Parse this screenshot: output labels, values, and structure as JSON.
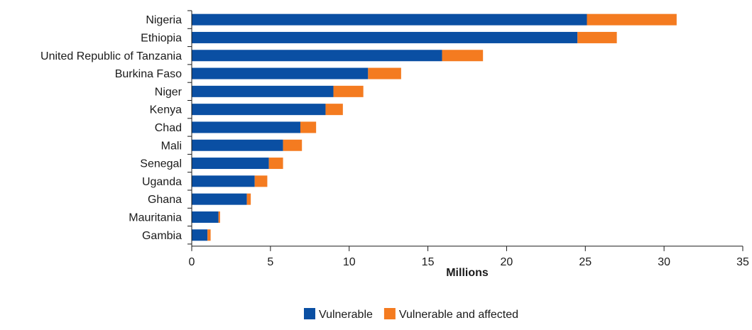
{
  "chart_data": {
    "type": "bar",
    "orientation": "horizontal",
    "stacked": true,
    "categories": [
      "Nigeria",
      "Ethiopia",
      "United Republic of Tanzania",
      "Burkina Faso",
      "Niger",
      "Kenya",
      "Chad",
      "Mali",
      "Senegal",
      "Uganda",
      "Ghana",
      "Mauritania",
      "Gambia"
    ],
    "series": [
      {
        "name": "Vulnerable",
        "color": "#0a4fa3",
        "values": [
          25.1,
          24.5,
          15.9,
          11.2,
          9.0,
          8.5,
          6.9,
          5.8,
          4.9,
          4.0,
          3.5,
          1.7,
          1.0
        ]
      },
      {
        "name": "Vulnerable and affected",
        "color": "#f47b20",
        "values": [
          5.7,
          2.5,
          2.6,
          2.1,
          1.9,
          1.1,
          1.0,
          1.2,
          0.9,
          0.8,
          0.25,
          0.1,
          0.2
        ]
      }
    ],
    "xlabel": "Millions",
    "ylabel": "",
    "xlim": [
      0,
      35
    ],
    "xticks": [
      0,
      5,
      10,
      15,
      20,
      25,
      30,
      35
    ],
    "grid": false,
    "legend_position": "bottom"
  }
}
